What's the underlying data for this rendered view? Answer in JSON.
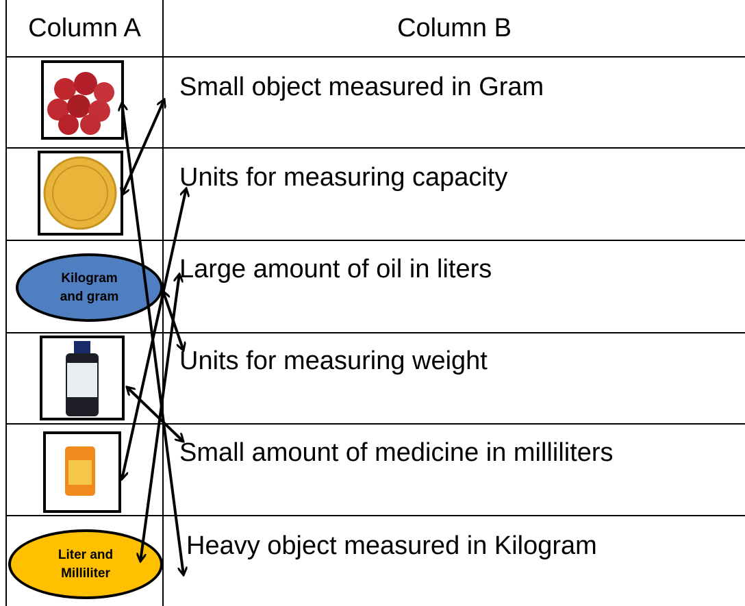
{
  "header": {
    "columns": [
      "Column A",
      "Column B"
    ]
  },
  "rows": [
    {
      "b": "Small object measured in Gram"
    },
    {
      "b": "Units for measuring capacity"
    },
    {
      "a": "Kilogram and gram",
      "b": "Large amount of oil in liters"
    },
    {
      "b": "Units for measuring weight"
    },
    {
      "b": "Small amount of medicine in milliliters"
    },
    {
      "a": "Liter and Milliliter",
      "b": "Heavy object measured in Kilogram"
    }
  ]
}
